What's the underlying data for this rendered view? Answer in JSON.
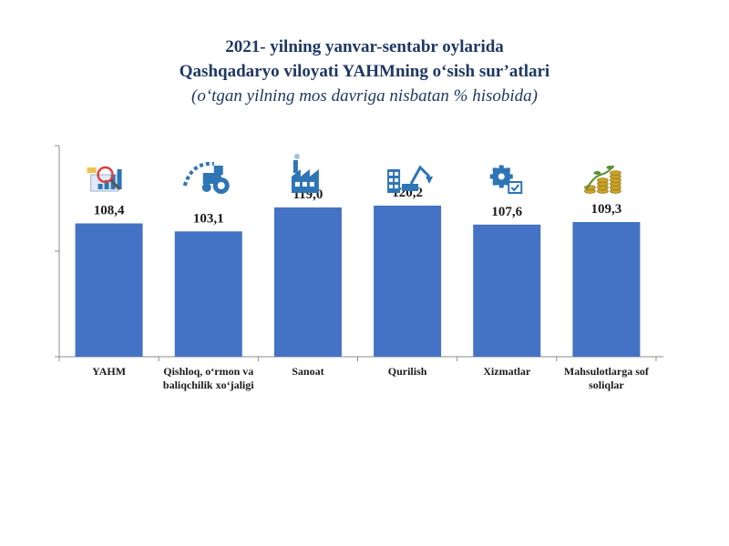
{
  "title": {
    "line1": "2021- yilning yanvar-sentabr oylarida",
    "line2": "Qashqadaryo viloyati YAHMning o‘sish sur’atlari",
    "line3": "(o‘tgan yilning mos davriga nisbatan % hisobida)"
  },
  "colors": {
    "bar": "#4472c4",
    "text": "#1f3864",
    "icon_blue": "#2e75b6",
    "icon_gold": "#c9a227",
    "icon_green": "#5a8f2e"
  },
  "chart_data": {
    "type": "bar",
    "categories": [
      [
        "YAHM"
      ],
      [
        "Qishloq, o‘rmon va",
        "baliqchilik xo‘jaligi"
      ],
      [
        "Sanoat"
      ],
      [
        "Qurilish"
      ],
      [
        "Xizmatlar"
      ],
      [
        "Mahsulotlarga sof",
        "soliqlar"
      ]
    ],
    "values": [
      108.4,
      103.1,
      119.0,
      120.2,
      107.6,
      109.3
    ],
    "value_labels": [
      "108,4",
      "103,1",
      "119,0",
      "120,2",
      "107,6",
      "109,3"
    ],
    "icons": [
      "chart-analysis-icon",
      "tractor-icon",
      "factory-icon",
      "construction-crane-icon",
      "gears-services-icon",
      "coins-growth-icon"
    ],
    "ylim": [
      20,
      160
    ],
    "grid": false,
    "legend": "none"
  }
}
